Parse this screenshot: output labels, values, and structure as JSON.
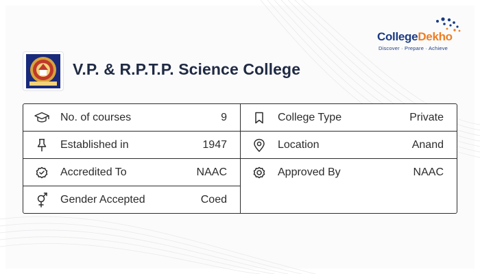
{
  "brand": {
    "name_part1": "College",
    "name_part2": "Dekho",
    "tagline": "Discover · Prepare · Achieve",
    "primary_color": "#1b3b84",
    "accent_color": "#ee7d22"
  },
  "college": {
    "name": "V.P. & R.P.T.P. Science College",
    "logo_icon": "college-seal-icon"
  },
  "details": {
    "left": [
      {
        "icon": "graduation-cap-icon",
        "label": "No. of courses",
        "value": "9"
      },
      {
        "icon": "pin-icon",
        "label": "Established in",
        "value": "1947"
      },
      {
        "icon": "check-badge-icon",
        "label": "Accredited To",
        "value": "NAAC"
      },
      {
        "icon": "gender-icon",
        "label": "Gender Accepted",
        "value": "Coed"
      }
    ],
    "right": [
      {
        "icon": "bookmark-icon",
        "label": "College Type",
        "value": "Private"
      },
      {
        "icon": "location-icon",
        "label": "Location",
        "value": "Anand"
      },
      {
        "icon": "approved-badge-icon",
        "label": "Approved By",
        "value": "NAAC"
      }
    ]
  }
}
